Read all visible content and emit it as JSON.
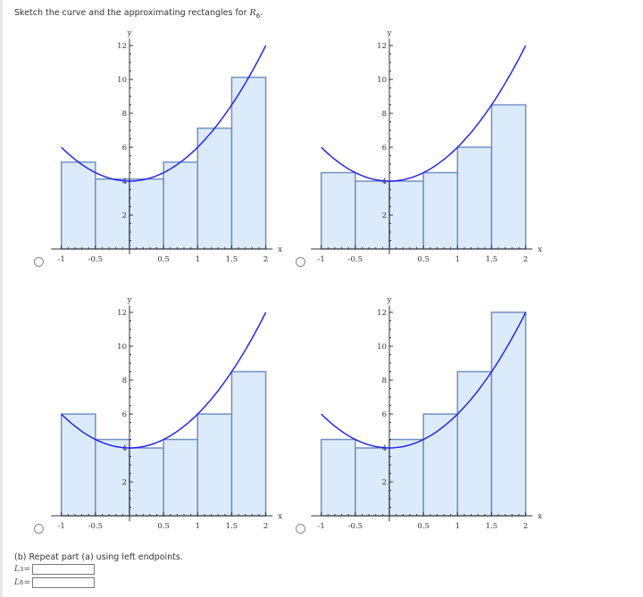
{
  "prompt": {
    "text": "Sketch the curve and the approximating rectangles for ",
    "var": "R",
    "sub": "6",
    "end": "."
  },
  "part_b": {
    "text": "(b) Repeat part (a) using left endpoints.",
    "fields": [
      {
        "label": "L",
        "sub": "3",
        "eq": "=",
        "value": ""
      },
      {
        "label": "L",
        "sub": "6",
        "eq": "=",
        "value": ""
      }
    ]
  },
  "colors": {
    "curve": "#1a1aff",
    "rect_fill": "#dcebfc",
    "rect_stroke": "#7090c0",
    "axis": "#333333"
  },
  "chart_data": [
    {
      "type": "bar",
      "subtype": "riemann-rectangles",
      "option": "top-left",
      "function": "4+2x^2",
      "xlabel": "x",
      "ylabel": "y",
      "xlim": [
        -1,
        2
      ],
      "ylim": [
        0,
        12
      ],
      "xticks": [
        "-1",
        "-0.5",
        "0.5",
        "1",
        "1.5",
        "2"
      ],
      "yticks": [
        "2",
        "4",
        "6",
        "8",
        "10",
        "12"
      ],
      "intervals": [
        [
          -1,
          -0.5
        ],
        [
          -0.5,
          0
        ],
        [
          0,
          0.5
        ],
        [
          0.5,
          1
        ],
        [
          1,
          1.5
        ],
        [
          1.5,
          2
        ]
      ],
      "values": [
        5.125,
        4.125,
        4.125,
        5.125,
        7.125,
        10.125
      ]
    },
    {
      "type": "bar",
      "subtype": "riemann-rectangles",
      "option": "top-right",
      "function": "4+2x^2",
      "xlabel": "x",
      "ylabel": "y",
      "xlim": [
        -1,
        2
      ],
      "ylim": [
        0,
        12
      ],
      "xticks": [
        "-1",
        "-0.5",
        "0.5",
        "1",
        "1.5",
        "2"
      ],
      "yticks": [
        "2",
        "4",
        "6",
        "8",
        "10",
        "12"
      ],
      "intervals": [
        [
          -1,
          -0.5
        ],
        [
          -0.5,
          0
        ],
        [
          0,
          0.5
        ],
        [
          0.5,
          1
        ],
        [
          1,
          1.5
        ],
        [
          1.5,
          2
        ]
      ],
      "values": [
        4.5,
        4,
        4,
        4.5,
        6,
        8.5
      ]
    },
    {
      "type": "bar",
      "subtype": "riemann-rectangles",
      "option": "bottom-left",
      "function": "4+2x^2",
      "xlabel": "x",
      "ylabel": "y",
      "xlim": [
        -1,
        2
      ],
      "ylim": [
        0,
        12
      ],
      "xticks": [
        "-1",
        "-0.5",
        "0.5",
        "1",
        "1.5",
        "2"
      ],
      "yticks": [
        "2",
        "4",
        "6",
        "8",
        "10",
        "12"
      ],
      "intervals": [
        [
          -1,
          -0.5
        ],
        [
          -0.5,
          0
        ],
        [
          0,
          0.5
        ],
        [
          0.5,
          1
        ],
        [
          1,
          1.5
        ],
        [
          1.5,
          2
        ]
      ],
      "values": [
        6,
        4.5,
        4,
        4.5,
        6,
        8.5
      ]
    },
    {
      "type": "bar",
      "subtype": "riemann-rectangles",
      "option": "bottom-right",
      "function": "4+2x^2",
      "xlabel": "x",
      "ylabel": "y",
      "xlim": [
        -1,
        2
      ],
      "ylim": [
        0,
        12
      ],
      "xticks": [
        "-1",
        "-0.5",
        "0.5",
        "1",
        "1.5",
        "2"
      ],
      "yticks": [
        "2",
        "4",
        "6",
        "8",
        "10",
        "12"
      ],
      "intervals": [
        [
          -1,
          -0.5
        ],
        [
          -0.5,
          0
        ],
        [
          0,
          0.5
        ],
        [
          0.5,
          1
        ],
        [
          1,
          1.5
        ],
        [
          1.5,
          2
        ]
      ],
      "values": [
        4.5,
        4,
        4.5,
        6,
        8.5,
        12
      ]
    }
  ]
}
